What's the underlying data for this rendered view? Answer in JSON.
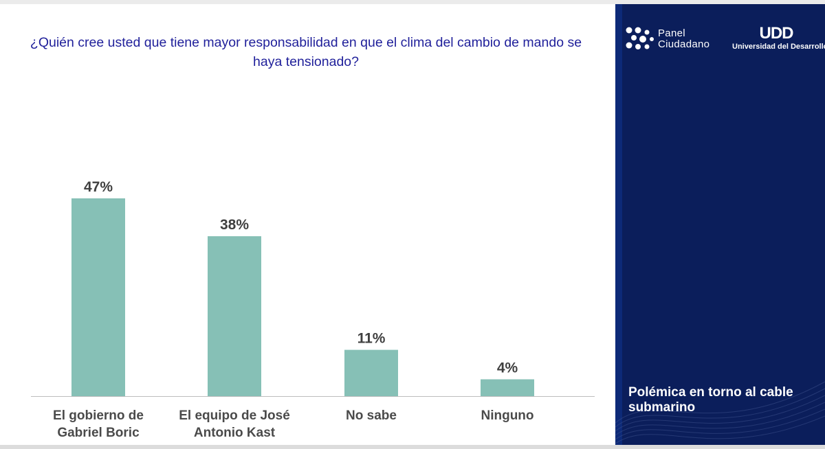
{
  "question": "¿Quién cree usted que tiene mayor responsabilidad en que el clima del cambio de mando se haya tensionado?",
  "chart_data": {
    "type": "bar",
    "title": "¿Quién cree usted que tiene mayor responsabilidad en que el clima del cambio de mando se haya tensionado?",
    "categories": [
      [
        "El gobierno de",
        "Gabriel Boric"
      ],
      [
        "El equipo de José",
        "Antonio Kast"
      ],
      [
        "No sabe"
      ],
      [
        "Ninguno"
      ]
    ],
    "values": [
      47,
      38,
      11,
      4
    ],
    "value_labels": [
      "47%",
      "38%",
      "11%",
      "4%"
    ],
    "ylim": [
      0,
      50
    ],
    "grid": false,
    "bar_color": "#86c0b6"
  },
  "sidebar": {
    "logo_panel_line1": "Panel",
    "logo_panel_line2": "Ciudadano",
    "logo_udd_mark": "UDD",
    "logo_udd_name": "Universidad del Desarrollo",
    "title": "Polémica en torno al cable submarino",
    "background_color": "#0b1e5b"
  }
}
